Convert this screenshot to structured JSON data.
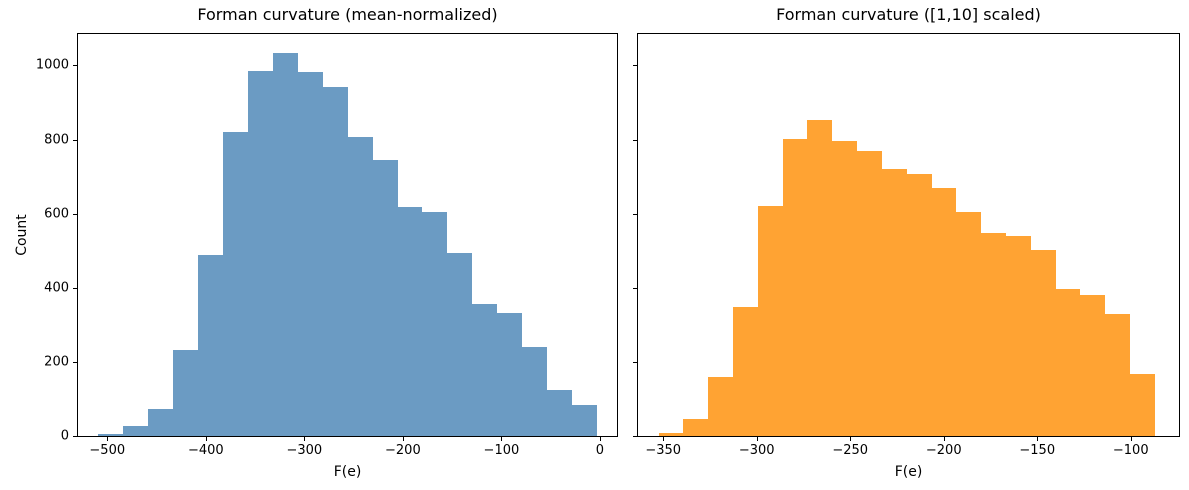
{
  "figure": {
    "background": "#ffffff",
    "text_color": "#000000"
  },
  "chart_data": [
    {
      "type": "histogram",
      "title": "Forman curvature (mean-normalized)",
      "xlabel": "F(e)",
      "ylabel": "Count",
      "bar_color": "#6b9bc3",
      "bin_start": -509,
      "bin_width": 25.3,
      "counts": [
        5,
        28,
        73,
        232,
        488,
        820,
        984,
        1034,
        983,
        942,
        808,
        746,
        618,
        605,
        493,
        357,
        332,
        240,
        125,
        84
      ],
      "xlim": [
        -529.7,
        17.3
      ],
      "ylim": [
        0,
        1085
      ],
      "xticks": [
        -500,
        -400,
        -300,
        -200,
        -100,
        0
      ],
      "yticks": [
        0,
        200,
        400,
        600,
        800,
        1000
      ],
      "show_ytick_labels": true,
      "grid": false,
      "legend": "none"
    },
    {
      "type": "histogram",
      "title": "Forman curvature ([1,10] scaled)",
      "xlabel": "F(e)",
      "ylabel": "",
      "bar_color": "#ffa333",
      "bin_start": -352.5,
      "bin_width": 13.27,
      "counts": [
        8,
        45,
        158,
        348,
        620,
        801,
        852,
        796,
        768,
        720,
        708,
        670,
        604,
        549,
        540,
        503,
        398,
        380,
        329,
        167
      ],
      "xlim": [
        -363.5,
        -74.2
      ],
      "ylim": [
        0,
        1085
      ],
      "xticks": [
        -350,
        -300,
        -250,
        -200,
        -150,
        -100
      ],
      "yticks": [
        0,
        200,
        400,
        600,
        800,
        1000
      ],
      "show_ytick_labels": false,
      "grid": false,
      "legend": "none"
    }
  ]
}
